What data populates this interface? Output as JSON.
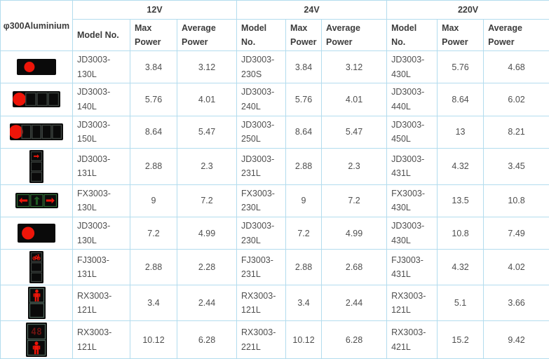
{
  "table": {
    "corner_label": "φ300Aluminium",
    "voltage_groups": [
      "12V",
      "24V",
      "220V"
    ],
    "sub_headers": [
      "Model No.",
      "Max Power",
      "Average Power"
    ],
    "colors": {
      "grid_border": "#b3dcee",
      "lamp_red": "#ee1509",
      "dim_red": "#6e1412",
      "dim_green": "#1e5c22",
      "housing_black": "#0a0a0a"
    },
    "rows": [
      {
        "icon": "signal-horizontal-red-ball-icon",
        "groups": [
          {
            "model": "JD3003-130L",
            "max": "3.84",
            "avg": "3.12"
          },
          {
            "model": "JD3003-230S",
            "max": "3.84",
            "avg": "3.12"
          },
          {
            "model": "JD3003-430L",
            "max": "5.76",
            "avg": "4.68"
          }
        ]
      },
      {
        "icon": "signal-horizontal-red-ball-3-cells-icon",
        "groups": [
          {
            "model": "JD3003-140L",
            "max": "5.76",
            "avg": "4.01"
          },
          {
            "model": "JD3003-240L",
            "max": "5.76",
            "avg": "4.01"
          },
          {
            "model": "JD3003-440L",
            "max": "8.64",
            "avg": "6.02"
          }
        ]
      },
      {
        "icon": "signal-horizontal-red-ball-4-cells-icon",
        "groups": [
          {
            "model": "JD3003-150L",
            "max": "8.64",
            "avg": "5.47"
          },
          {
            "model": "JD3003-250L",
            "max": "8.64",
            "avg": "5.47"
          },
          {
            "model": "JD3003-450L",
            "max": "13",
            "avg": "8.21"
          }
        ]
      },
      {
        "icon": "signal-vertical-red-right-arrow-icon",
        "groups": [
          {
            "model": "JD3003-131L",
            "max": "2.88",
            "avg": "2.3"
          },
          {
            "model": "JD3003-231L",
            "max": "2.88",
            "avg": "2.3"
          },
          {
            "model": "JD3003-431L",
            "max": "4.32",
            "avg": "3.45"
          }
        ]
      },
      {
        "icon": "signal-horizontal-three-arrows-icon",
        "groups": [
          {
            "model": "FX3003-130L",
            "max": "9",
            "avg": "7.2"
          },
          {
            "model": "FX3003-230L",
            "max": "9",
            "avg": "7.2"
          },
          {
            "model": "FX3003-430L",
            "max": "13.5",
            "avg": "10.8"
          }
        ]
      },
      {
        "icon": "signal-horizontal-red-ball-large-icon",
        "groups": [
          {
            "model": "JD3003-130L",
            "max": "7.2",
            "avg": "4.99"
          },
          {
            "model": "JD3003-230L",
            "max": "7.2",
            "avg": "4.99"
          },
          {
            "model": "JD3003-430L",
            "max": "10.8",
            "avg": "7.49"
          }
        ]
      },
      {
        "icon": "signal-vertical-red-bicycle-icon",
        "groups": [
          {
            "model": "FJ3003-131L",
            "max": "2.88",
            "avg": "2.28"
          },
          {
            "model": "FJ3003-231L",
            "max": "2.88",
            "avg": "2.68"
          },
          {
            "model": "FJ3003-431L",
            "max": "4.32",
            "avg": "4.02"
          }
        ]
      },
      {
        "icon": "signal-vertical-red-pedestrian-icon",
        "groups": [
          {
            "model": "RX3003-121L",
            "max": "3.4",
            "avg": "2.44"
          },
          {
            "model": "RX3003-121L",
            "max": "3.4",
            "avg": "2.44"
          },
          {
            "model": "RX3003-121L",
            "max": "5.1",
            "avg": "3.66"
          }
        ]
      },
      {
        "icon": "signal-vertical-countdown-pedestrian-icon",
        "groups": [
          {
            "model": "RX3003-121L",
            "max": "10.12",
            "avg": "6.28"
          },
          {
            "model": "RX3003-221L",
            "max": "10.12",
            "avg": "6.28"
          },
          {
            "model": "RX3003-421L",
            "max": "15.2",
            "avg": "9.42"
          }
        ]
      }
    ]
  }
}
